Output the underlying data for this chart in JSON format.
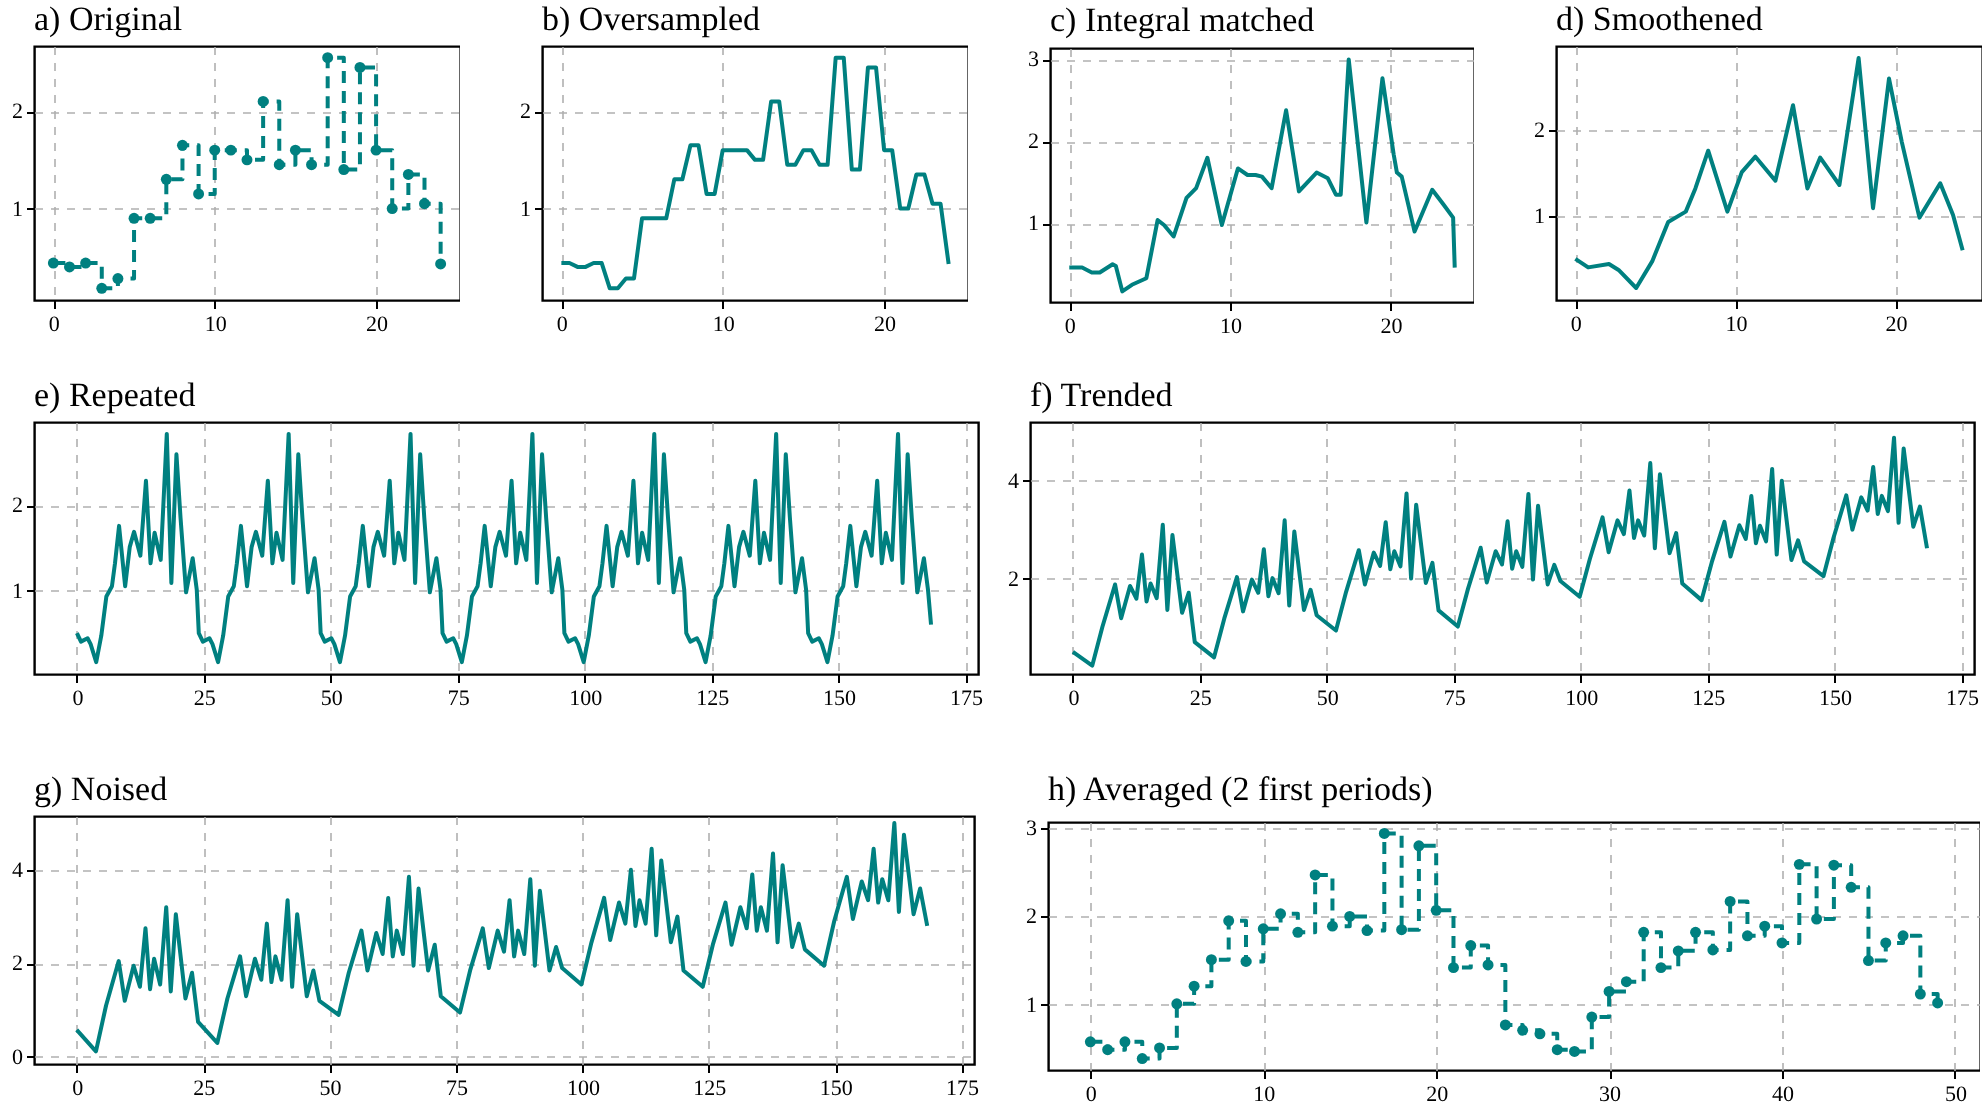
{
  "chart_data": [
    {
      "type": "step",
      "title": "a) Original",
      "marker": "circle",
      "line_style": "dashed",
      "color": "#008080",
      "grid": true,
      "x": [
        0,
        1,
        2,
        3,
        4,
        5,
        6,
        7,
        8,
        9,
        10,
        11,
        12,
        13,
        14,
        15,
        16,
        17,
        18,
        19,
        20,
        21,
        22,
        23,
        24
      ],
      "values": [
        0.44,
        0.4,
        0.44,
        0.18,
        0.28,
        0.9,
        0.9,
        1.3,
        1.65,
        1.15,
        1.6,
        1.6,
        1.5,
        2.1,
        1.45,
        1.6,
        1.45,
        2.55,
        1.4,
        2.45,
        1.6,
        1.0,
        1.35,
        1.05,
        0.43
      ],
      "xlim": [
        -1.2,
        25.2
      ],
      "xticks": [
        0,
        10,
        20
      ],
      "ylim": [
        0.06,
        2.67
      ],
      "yticks": [
        1,
        2
      ]
    },
    {
      "type": "line",
      "title": "b) Oversampled",
      "color": "#008080",
      "grid": true,
      "x": [
        0,
        0.5,
        1,
        1.5,
        2,
        2.5,
        3,
        3.5,
        4,
        4.5,
        5,
        5.5,
        6,
        6.5,
        7,
        7.5,
        8,
        8.5,
        9,
        9.5,
        10,
        10.5,
        11,
        11.5,
        12,
        12.5,
        13,
        13.5,
        14,
        14.5,
        15,
        15.5,
        16,
        16.5,
        17,
        17.5,
        18,
        18.5,
        19,
        19.5,
        20,
        20.5,
        21,
        21.5,
        22,
        22.5,
        23,
        23.5,
        24
      ],
      "values": [
        0.44,
        0.44,
        0.4,
        0.4,
        0.44,
        0.44,
        0.18,
        0.18,
        0.28,
        0.28,
        0.9,
        0.9,
        0.9,
        0.9,
        1.3,
        1.3,
        1.65,
        1.65,
        1.15,
        1.15,
        1.6,
        1.6,
        1.6,
        1.6,
        1.5,
        1.5,
        2.1,
        2.1,
        1.45,
        1.45,
        1.6,
        1.6,
        1.45,
        1.45,
        2.55,
        2.55,
        1.4,
        1.4,
        2.45,
        2.45,
        1.6,
        1.6,
        1.0,
        1.0,
        1.35,
        1.35,
        1.05,
        1.05,
        0.43
      ],
      "xlim": [
        -1.2,
        25.2
      ],
      "xticks": [
        0,
        10,
        20
      ],
      "ylim": [
        0.06,
        2.67
      ],
      "yticks": [
        1,
        2
      ]
    },
    {
      "type": "line",
      "title": "c) Integral matched",
      "color": "#008080",
      "grid": true,
      "x": [
        0,
        0.8,
        1.4,
        1.9,
        2.7,
        2.9,
        3.3,
        3.9,
        4.8,
        5.5,
        5.9,
        6.5,
        7.3,
        7.9,
        8.6,
        9.5,
        10.5,
        11.1,
        11.6,
        12.0,
        12.6,
        13.5,
        14.3,
        15.4,
        16.1,
        16.6,
        16.9,
        17.4,
        18.5,
        19.5,
        20.2,
        20.4,
        20.7,
        21.5,
        22.6,
        23.3,
        23.9,
        24
      ],
      "values": [
        0.46,
        0.46,
        0.4,
        0.4,
        0.5,
        0.48,
        0.17,
        0.25,
        0.33,
        1.04,
        0.98,
        0.84,
        1.31,
        1.43,
        1.8,
        0.98,
        1.67,
        1.59,
        1.59,
        1.57,
        1.43,
        2.38,
        1.39,
        1.62,
        1.55,
        1.35,
        1.35,
        3.0,
        1.01,
        2.77,
        1.84,
        1.62,
        1.57,
        0.9,
        1.41,
        1.23,
        1.07,
        0.46
      ],
      "xlim": [
        -1.2,
        25.2
      ],
      "xticks": [
        0,
        10,
        20
      ],
      "ylim": [
        0.04,
        3.14
      ],
      "yticks": [
        1,
        2,
        3
      ]
    },
    {
      "type": "line",
      "title": "d) Smoothened",
      "color": "#008080",
      "grid": true,
      "x": [
        0,
        0.8,
        2.1,
        2.7,
        3.8,
        4.8,
        5.8,
        6.9,
        7.5,
        8.3,
        9.5,
        10.4,
        11.25,
        12.5,
        13.6,
        14.5,
        15.3,
        16.5,
        17.7,
        18.6,
        19.6,
        20.4,
        21.5,
        22.8,
        23.6,
        24.2
      ],
      "values": [
        0.5,
        0.4,
        0.44,
        0.37,
        0.16,
        0.47,
        0.93,
        1.05,
        1.32,
        1.76,
        1.05,
        1.51,
        1.69,
        1.41,
        2.29,
        1.32,
        1.68,
        1.36,
        2.84,
        1.09,
        2.6,
        1.86,
        0.98,
        1.38,
        1.01,
        0.6
      ],
      "xlim": [
        -1.21,
        25.41
      ],
      "xticks": [
        0,
        10,
        20
      ],
      "ylim": [
        0.02,
        2.98
      ],
      "yticks": [
        1,
        2
      ]
    },
    {
      "type": "line",
      "title": "e) Repeated",
      "color": "#008080",
      "grid": true,
      "x": [
        0,
        0.8,
        2.1,
        2.7,
        3.8,
        4.8,
        5.8,
        6.9,
        7.5,
        8.3,
        9.5,
        10.4,
        11.25,
        12.5,
        13.6,
        14.5,
        15.3,
        16.5,
        17.7,
        18.6,
        19.6,
        20.4,
        21.5,
        22.8,
        23.6,
        24,
        24.8,
        26.1,
        26.7,
        27.8,
        28.8,
        29.8,
        30.9,
        31.5,
        32.3,
        33.5,
        34.4,
        35.25,
        36.5,
        37.6,
        38.5,
        39.3,
        40.5,
        41.7,
        42.6,
        43.6,
        44.4,
        45.5,
        46.8,
        47.6,
        48,
        48.8,
        50.1,
        50.7,
        51.8,
        52.8,
        53.8,
        54.9,
        55.5,
        56.3,
        57.5,
        58.4,
        59.25,
        60.5,
        61.6,
        62.5,
        63.3,
        64.5,
        65.7,
        66.6,
        67.6,
        68.4,
        69.5,
        70.8,
        71.6,
        72,
        72.8,
        74.1,
        74.7,
        75.8,
        76.8,
        77.8,
        78.9,
        79.5,
        80.3,
        81.5,
        82.4,
        83.25,
        84.5,
        85.6,
        86.5,
        87.3,
        88.5,
        89.7,
        90.6,
        91.6,
        92.4,
        93.5,
        94.8,
        95.6,
        96,
        96.8,
        98.1,
        98.7,
        99.8,
        100.8,
        101.8,
        102.9,
        103.5,
        104.3,
        105.5,
        106.4,
        107.25,
        108.5,
        109.6,
        110.5,
        111.3,
        112.5,
        113.7,
        114.6,
        115.6,
        116.4,
        117.5,
        118.8,
        119.6,
        120,
        120.8,
        122.1,
        122.7,
        123.8,
        124.8,
        125.8,
        126.9,
        127.5,
        128.3,
        129.5,
        130.4,
        131.25,
        132.5,
        133.6,
        134.5,
        135.3,
        136.5,
        137.7,
        138.6,
        139.6,
        140.4,
        141.5,
        142.8,
        143.6,
        144,
        144.8,
        146.1,
        146.7,
        147.8,
        148.8,
        149.8,
        150.9,
        151.5,
        152.3,
        153.5,
        154.4,
        155.25,
        156.5,
        157.6,
        158.5,
        159.3,
        160.5,
        161.7,
        162.6,
        163.6,
        164.4,
        165.5,
        166.8,
        167.6,
        168.2
      ],
      "values": [
        0.5,
        0.4,
        0.44,
        0.37,
        0.16,
        0.47,
        0.93,
        1.05,
        1.32,
        1.76,
        1.05,
        1.51,
        1.69,
        1.41,
        2.29,
        1.32,
        1.68,
        1.36,
        2.84,
        1.09,
        2.6,
        1.86,
        0.98,
        1.38,
        1.01,
        0.5,
        0.4,
        0.44,
        0.37,
        0.16,
        0.47,
        0.93,
        1.05,
        1.32,
        1.76,
        1.05,
        1.51,
        1.69,
        1.41,
        2.29,
        1.32,
        1.68,
        1.36,
        2.84,
        1.09,
        2.6,
        1.86,
        0.98,
        1.38,
        1.01,
        0.5,
        0.4,
        0.44,
        0.37,
        0.16,
        0.47,
        0.93,
        1.05,
        1.32,
        1.76,
        1.05,
        1.51,
        1.69,
        1.41,
        2.29,
        1.32,
        1.68,
        1.36,
        2.84,
        1.09,
        2.6,
        1.86,
        0.98,
        1.38,
        1.01,
        0.5,
        0.4,
        0.44,
        0.37,
        0.16,
        0.47,
        0.93,
        1.05,
        1.32,
        1.76,
        1.05,
        1.51,
        1.69,
        1.41,
        2.29,
        1.32,
        1.68,
        1.36,
        2.84,
        1.09,
        2.6,
        1.86,
        0.98,
        1.38,
        1.01,
        0.5,
        0.4,
        0.44,
        0.37,
        0.16,
        0.47,
        0.93,
        1.05,
        1.32,
        1.76,
        1.05,
        1.51,
        1.69,
        1.41,
        2.29,
        1.32,
        1.68,
        1.36,
        2.84,
        1.09,
        2.6,
        1.86,
        0.98,
        1.38,
        1.01,
        0.5,
        0.4,
        0.44,
        0.37,
        0.16,
        0.47,
        0.93,
        1.05,
        1.32,
        1.76,
        1.05,
        1.51,
        1.69,
        1.41,
        2.29,
        1.32,
        1.68,
        1.36,
        2.84,
        1.09,
        2.6,
        1.86,
        0.98,
        1.38,
        1.01,
        0.5,
        0.4,
        0.44,
        0.37,
        0.16,
        0.47,
        0.93,
        1.05,
        1.32,
        1.76,
        1.05,
        1.51,
        1.69,
        1.41,
        2.29,
        1.32,
        1.68,
        1.36,
        2.84,
        1.09,
        2.6,
        1.86,
        0.98,
        1.38,
        1.01,
        0.6
      ],
      "xlim": [
        -8.45,
        177.45
      ],
      "xticks": [
        0,
        25,
        50,
        75,
        100,
        125,
        150,
        175
      ],
      "ylim": [
        0.02,
        2.98
      ],
      "yticks": [
        1,
        2
      ]
    },
    {
      "type": "line",
      "title": "f) Trended",
      "color": "#008080",
      "grid": true,
      "x": [
        0,
        3.8,
        5.8,
        8.3,
        9.5,
        11.25,
        12.5,
        13.6,
        14.5,
        15.3,
        16.5,
        17.7,
        18.6,
        19.6,
        21.5,
        22.8,
        24,
        27.8,
        29.8,
        32.3,
        33.5,
        35.25,
        36.5,
        37.6,
        38.5,
        39.3,
        40.5,
        41.7,
        42.6,
        43.6,
        45.5,
        46.8,
        48,
        51.8,
        53.8,
        56.3,
        57.5,
        59.25,
        60.5,
        61.6,
        62.5,
        63.3,
        64.5,
        65.7,
        66.6,
        67.6,
        69.5,
        70.8,
        72,
        75.8,
        77.8,
        80.3,
        81.5,
        83.25,
        84.5,
        85.6,
        86.5,
        87.3,
        88.5,
        89.7,
        90.6,
        91.6,
        93.5,
        94.8,
        96,
        99.8,
        101.8,
        104.3,
        105.5,
        107.25,
        108.5,
        109.6,
        110.5,
        111.3,
        112.5,
        113.7,
        114.6,
        115.6,
        117.5,
        118.8,
        120,
        123.8,
        125.8,
        128.3,
        129.5,
        131.25,
        132.5,
        133.6,
        134.5,
        135.3,
        136.5,
        137.7,
        138.6,
        139.6,
        141.5,
        142.8,
        144,
        147.8,
        149.8,
        152.3,
        153.5,
        155.25,
        156.5,
        157.6,
        158.5,
        159.3,
        160.5,
        161.7,
        162.6,
        163.6,
        165.5,
        166.8,
        168.2
      ],
      "values": [
        0.5,
        0.22,
        1.01,
        1.88,
        1.19,
        1.85,
        1.59,
        2.49,
        1.53,
        1.9,
        1.6,
        3.1,
        1.36,
        2.89,
        1.3,
        1.71,
        0.7,
        0.39,
        1.18,
        2.03,
        1.33,
        1.98,
        1.71,
        2.6,
        1.64,
        2.01,
        1.7,
        3.19,
        1.45,
        2.96,
        1.36,
        1.77,
        1.25,
        0.94,
        1.73,
        2.58,
        1.88,
        2.53,
        2.26,
        3.15,
        2.19,
        2.56,
        2.25,
        3.74,
        2.0,
        3.51,
        1.91,
        2.32,
        1.35,
        1.02,
        1.79,
        2.63,
        1.92,
        2.56,
        2.29,
        3.17,
        2.2,
        2.56,
        2.24,
        3.73,
        1.98,
        3.49,
        1.88,
        2.28,
        1.95,
        1.63,
        2.4,
        3.25,
        2.54,
        3.19,
        2.91,
        3.8,
        2.83,
        3.19,
        2.88,
        4.36,
        2.62,
        4.13,
        2.52,
        2.93,
        1.9,
        1.56,
        2.33,
        3.16,
        2.45,
        3.09,
        2.81,
        3.69,
        2.72,
        3.08,
        2.76,
        4.24,
        2.49,
        4.0,
        2.38,
        2.78,
        2.35,
        2.05,
        2.84,
        3.7,
        3.0,
        3.66,
        3.39,
        4.28,
        3.32,
        3.69,
        3.38,
        4.88,
        3.14,
        4.66,
        3.06,
        3.47,
        2.62
      ],
      "xlim": [
        -8.45,
        177.45
      ],
      "xticks": [
        0,
        25,
        50,
        75,
        100,
        125,
        150,
        175
      ],
      "ylim": [
        0.05,
        5.2
      ],
      "yticks": [
        2,
        4
      ]
    },
    {
      "type": "line",
      "title": "g) Noised",
      "color": "#008080",
      "grid": true,
      "x": [
        0,
        3.8,
        5.8,
        8.3,
        9.5,
        11.25,
        12.5,
        13.6,
        14.5,
        15.3,
        16.5,
        17.7,
        18.6,
        19.6,
        21.5,
        22.8,
        24,
        27.8,
        29.8,
        32.3,
        33.5,
        35.25,
        36.5,
        37.6,
        38.5,
        39.3,
        40.5,
        41.7,
        42.6,
        43.6,
        45.5,
        46.8,
        48,
        51.8,
        53.8,
        56.3,
        57.5,
        59.25,
        60.5,
        61.6,
        62.5,
        63.3,
        64.5,
        65.7,
        66.6,
        67.6,
        69.5,
        70.8,
        72,
        75.8,
        77.8,
        80.3,
        81.5,
        83.25,
        84.5,
        85.6,
        86.5,
        87.3,
        88.5,
        89.7,
        90.6,
        91.6,
        93.5,
        94.8,
        96,
        99.8,
        101.8,
        104.3,
        105.5,
        107.25,
        108.5,
        109.6,
        110.5,
        111.3,
        112.5,
        113.7,
        114.6,
        115.6,
        117.5,
        118.8,
        120,
        123.8,
        125.8,
        128.3,
        129.5,
        131.25,
        132.5,
        133.6,
        134.5,
        135.3,
        136.5,
        137.7,
        138.6,
        139.6,
        141.5,
        142.8,
        144,
        147.8,
        149.8,
        152.3,
        153.5,
        155.25,
        156.5,
        157.6,
        158.5,
        159.3,
        160.5,
        161.7,
        162.6,
        163.6,
        165.5,
        166.8,
        168.2
      ],
      "values": [
        0.58,
        0.12,
        1.1,
        2.05,
        1.2,
        1.95,
        1.5,
        2.75,
        1.45,
        2.1,
        1.55,
        3.2,
        1.4,
        3.05,
        1.25,
        1.8,
        0.75,
        0.3,
        1.25,
        2.15,
        1.3,
        2.1,
        1.65,
        2.85,
        1.6,
        2.15,
        1.65,
        3.35,
        1.5,
        3.05,
        1.3,
        1.85,
        1.2,
        0.9,
        1.8,
        2.7,
        1.85,
        2.65,
        2.2,
        3.4,
        2.15,
        2.7,
        2.2,
        3.85,
        1.95,
        3.6,
        1.85,
        2.4,
        1.3,
        0.95,
        1.85,
        2.75,
        1.9,
        2.7,
        2.25,
        3.35,
        2.15,
        2.7,
        2.2,
        3.8,
        1.95,
        3.55,
        1.85,
        2.35,
        1.9,
        1.55,
        2.45,
        3.4,
        2.5,
        3.3,
        2.85,
        4.0,
        2.8,
        3.35,
        2.85,
        4.45,
        2.6,
        4.2,
        2.45,
        3.0,
        1.85,
        1.5,
        2.4,
        3.3,
        2.4,
        3.2,
        2.75,
        3.9,
        2.7,
        3.2,
        2.7,
        4.35,
        2.45,
        4.1,
        2.35,
        2.85,
        2.3,
        1.95,
        2.9,
        3.85,
        2.95,
        3.75,
        3.35,
        4.45,
        3.3,
        3.8,
        3.35,
        5.0,
        3.1,
        4.75,
        3.05,
        3.6,
        2.8
      ],
      "xlim": [
        -8.45,
        177.45
      ],
      "xticks": [
        0,
        25,
        50,
        75,
        100,
        125,
        150,
        175
      ],
      "ylim": [
        -0.15,
        5.15
      ],
      "yticks": [
        0,
        2,
        4
      ]
    },
    {
      "type": "step",
      "title": "h) Averaged (2 first periods)",
      "marker": "circle",
      "line_style": "dashed",
      "color": "#008080",
      "grid": true,
      "x": [
        0,
        1,
        2,
        3,
        4,
        5,
        6,
        7,
        8,
        9,
        10,
        11,
        12,
        13,
        14,
        15,
        16,
        17,
        18,
        19,
        20,
        21,
        22,
        23,
        24,
        25,
        26,
        27,
        28,
        29,
        30,
        31,
        32,
        33,
        34,
        35,
        36,
        37,
        38,
        39,
        40,
        41,
        42,
        43,
        44,
        45,
        46,
        47,
        48,
        49
      ],
      "values": [
        0.58,
        0.49,
        0.58,
        0.39,
        0.51,
        1.01,
        1.21,
        1.51,
        1.95,
        1.49,
        1.86,
        2.03,
        1.82,
        2.47,
        1.89,
        2.0,
        1.84,
        2.94,
        1.85,
        2.8,
        2.07,
        1.42,
        1.67,
        1.45,
        0.77,
        0.71,
        0.67,
        0.49,
        0.47,
        0.86,
        1.15,
        1.26,
        1.82,
        1.42,
        1.61,
        1.82,
        1.62,
        2.17,
        1.78,
        1.89,
        1.7,
        2.59,
        1.97,
        2.58,
        2.33,
        1.5,
        1.7,
        1.78,
        1.12,
        1.02
      ],
      "xlim": [
        -2.45,
        51.45
      ],
      "xticks": [
        0,
        10,
        20,
        30,
        40,
        50
      ],
      "ylim": [
        0.26,
        3.07
      ],
      "yticks": [
        1,
        2,
        3
      ]
    }
  ]
}
